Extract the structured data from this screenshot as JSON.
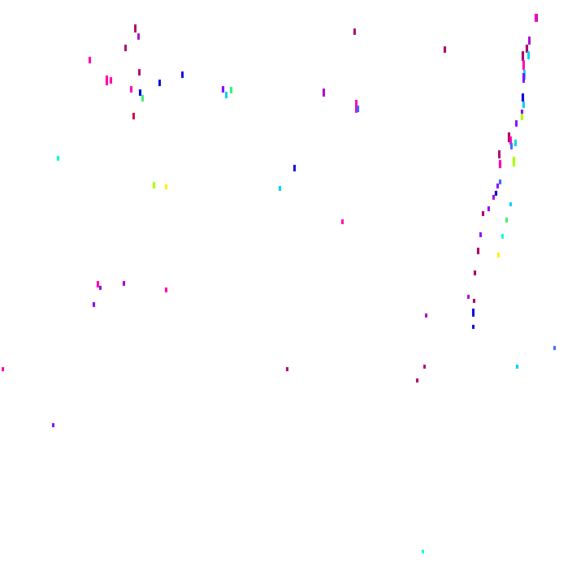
{
  "palette": {
    "magenta": "#ff00aa",
    "crimson": "#aa0066",
    "violet": "#8800ff",
    "purple": "#aa00cc",
    "blue": "#0000dd",
    "royal": "#3366ff",
    "cyan": "#00ccff",
    "aqua": "#00ffcc",
    "green": "#33ee66",
    "lime": "#aaff00",
    "yellow": "#ffee00",
    "red": "#cc0033"
  }
}
